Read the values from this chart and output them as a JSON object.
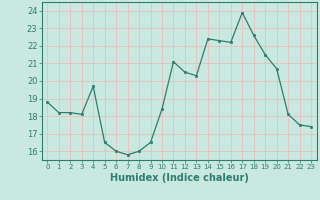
{
  "x": [
    0,
    1,
    2,
    3,
    4,
    5,
    6,
    7,
    8,
    9,
    10,
    11,
    12,
    13,
    14,
    15,
    16,
    17,
    18,
    19,
    20,
    21,
    22,
    23
  ],
  "y": [
    18.8,
    18.2,
    18.2,
    18.1,
    19.7,
    16.5,
    16.0,
    15.8,
    16.0,
    16.5,
    18.4,
    21.1,
    20.5,
    20.3,
    22.4,
    22.3,
    22.2,
    23.9,
    22.6,
    21.5,
    20.7,
    18.1,
    17.5,
    17.4
  ],
  "line_color": "#2e7d6e",
  "bg_color": "#c8e8e0",
  "grid_color_major": "#f0b8b8",
  "grid_color_minor": "#f0b8b8",
  "xlabel": "Humidex (Indice chaleur)",
  "ylabel_ticks": [
    16,
    17,
    18,
    19,
    20,
    21,
    22,
    23,
    24
  ],
  "ylim": [
    15.5,
    24.5
  ],
  "xlim": [
    -0.5,
    23.5
  ],
  "tick_fontsize": 6,
  "xlabel_fontsize": 7
}
